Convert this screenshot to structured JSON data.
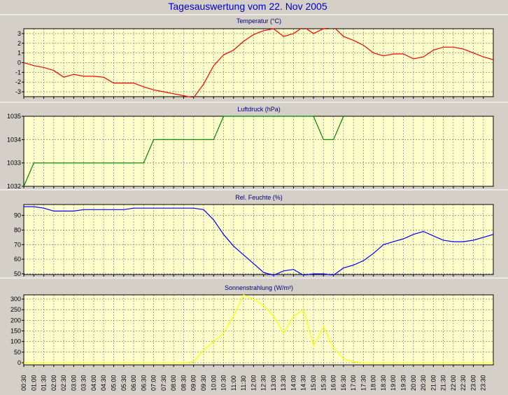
{
  "title": "Tagesauswertung vom 22. Nov 2005",
  "colors": {
    "background": "#d4d0c8",
    "plot_background": "#ffffcc",
    "grid": "#8c8c8c",
    "title": "#0000cc",
    "panel_title": "#000080",
    "temperature": "#ff0000",
    "pressure": "#008000",
    "humidity": "#0000ff",
    "radiation": "#ffff00"
  },
  "x_ticks": [
    "00:30",
    "01:00",
    "01:30",
    "02:00",
    "02:30",
    "03:00",
    "03:30",
    "04:00",
    "04:30",
    "05:00",
    "05:30",
    "06:00",
    "06:30",
    "07:00",
    "07:30",
    "08:00",
    "08:30",
    "09:00",
    "09:30",
    "10:00",
    "10:30",
    "11:00",
    "11:30",
    "12:00",
    "12:30",
    "13:00",
    "13:30",
    "14:00",
    "14:30",
    "15:00",
    "15:30",
    "16:00",
    "16:30",
    "17:00",
    "17:30",
    "18:00",
    "18:30",
    "19:00",
    "19:30",
    "20:00",
    "20:30",
    "21:00",
    "21:30",
    "22:00",
    "22:30",
    "23:00",
    "23:30"
  ],
  "chart_data": [
    {
      "type": "line",
      "title": "Temperatur (°C)",
      "color": "#ff0000",
      "grid": true,
      "ylim": [
        -3.5,
        3.5
      ],
      "yticks": [
        "3",
        "2",
        "1",
        "0",
        "-1",
        "-2",
        "-3"
      ],
      "ytick_values": [
        3,
        2,
        1,
        0,
        -1,
        -2,
        -3
      ],
      "x": [
        0,
        0.5,
        1,
        1.5,
        2,
        2.5,
        3,
        3.5,
        4,
        4.5,
        5,
        5.5,
        6,
        6.5,
        7,
        7.5,
        8,
        8.5,
        9,
        9.5,
        10,
        10.5,
        11,
        11.5,
        12,
        12.5,
        13,
        13.5,
        14,
        14.5,
        15,
        15.5,
        16,
        16.5,
        17,
        17.5,
        18,
        18.5,
        19,
        19.5,
        20,
        20.5,
        21,
        21.5,
        22,
        22.5,
        23,
        23.5
      ],
      "series": [
        {
          "values": [
            0,
            -0.3,
            -0.5,
            -0.8,
            -1.5,
            -1.2,
            -1.4,
            -1.4,
            -1.5,
            -2.1,
            -2.1,
            -2.1,
            -2.5,
            -2.8,
            -3,
            -3.2,
            -3.4,
            -3.6,
            -2.2,
            -0.3,
            0.8,
            1.3,
            2.2,
            2.9,
            3.3,
            3.5,
            2.7,
            3,
            3.7,
            3,
            3.5,
            3.7,
            2.7,
            2.3,
            1.8,
            1,
            0.7,
            0.9,
            0.9,
            0.4,
            0.6,
            1.3,
            1.6,
            1.6,
            1.4,
            1,
            0.6,
            0.3
          ]
        }
      ]
    },
    {
      "type": "line",
      "title": "Luftdruck (hPa)",
      "color": "#008000",
      "grid": true,
      "ylim": [
        1032,
        1035
      ],
      "yticks": [
        "1035",
        "1034",
        "1033",
        "1032"
      ],
      "ytick_values": [
        1035,
        1034,
        1033,
        1032
      ],
      "x": [
        0,
        0.5,
        1,
        6,
        6.5,
        9.5,
        10,
        14.5,
        15,
        15.5,
        16
      ],
      "series": [
        {
          "values": [
            1032,
            1033,
            1033,
            1033,
            1034,
            1034,
            1035,
            1035,
            1034,
            1034,
            1035
          ]
        }
      ]
    },
    {
      "type": "line",
      "title": "Rel. Feuchte (%)",
      "color": "#0000ff",
      "grid": true,
      "ylim": [
        49.5,
        97.5
      ],
      "yticks": [
        "90",
        "80",
        "70",
        "60",
        "50"
      ],
      "ytick_values": [
        90,
        80,
        70,
        60,
        50
      ],
      "x": [
        0,
        0.5,
        1,
        1.5,
        2,
        2.5,
        3,
        3.5,
        4,
        4.5,
        5,
        5.5,
        6,
        6.5,
        7,
        7.5,
        8,
        8.5,
        9,
        9.5,
        10,
        10.5,
        11,
        11.5,
        12,
        12.5,
        13,
        13.5,
        14,
        14.5,
        15,
        15.5,
        16,
        16.5,
        17,
        17.5,
        18,
        18.5,
        19,
        19.5,
        20,
        20.5,
        21,
        21.5,
        22,
        22.5,
        23,
        23.5
      ],
      "series": [
        {
          "values": [
            96,
            96,
            95,
            93,
            93,
            93,
            94,
            94,
            94,
            94,
            94,
            95,
            95,
            95,
            95,
            95,
            95,
            95,
            94,
            87,
            77,
            69,
            63,
            57,
            51,
            49,
            52,
            53,
            49,
            50,
            50,
            49,
            54,
            56,
            59,
            64,
            70,
            72,
            74,
            77,
            79,
            76,
            73,
            72,
            72,
            73,
            75,
            77
          ]
        }
      ]
    },
    {
      "type": "line",
      "title": "Sonnenstrahlung (W/m²)",
      "color": "#ffff00",
      "grid": true,
      "ylim": [
        -10,
        320
      ],
      "yticks": [
        "300",
        "250",
        "200",
        "150",
        "100",
        "50",
        "0"
      ],
      "ytick_values": [
        300,
        250,
        200,
        150,
        100,
        50,
        0
      ],
      "x": [
        0,
        0.5,
        1,
        1.5,
        2,
        2.5,
        3,
        3.5,
        4,
        4.5,
        5,
        5.5,
        6,
        6.5,
        7,
        7.5,
        8,
        8.5,
        9,
        9.5,
        10,
        10.5,
        11,
        11.5,
        12,
        12.5,
        13,
        13.5,
        14,
        14.5,
        15,
        15.5,
        16,
        16.5,
        17,
        17.5,
        18,
        18.5,
        19,
        19.5,
        20,
        20.5,
        21,
        21.5,
        22,
        22.5,
        23,
        23.5
      ],
      "series": [
        {
          "values": [
            0,
            0,
            0,
            0,
            0,
            0,
            0,
            0,
            0,
            0,
            0,
            0,
            0,
            0,
            0,
            0,
            0,
            5,
            60,
            100,
            140,
            220,
            320,
            300,
            270,
            220,
            140,
            220,
            250,
            80,
            170,
            70,
            20,
            5,
            0,
            0,
            0,
            0,
            0,
            0,
            0,
            0,
            0,
            0,
            0,
            0,
            0,
            0
          ]
        }
      ]
    }
  ]
}
